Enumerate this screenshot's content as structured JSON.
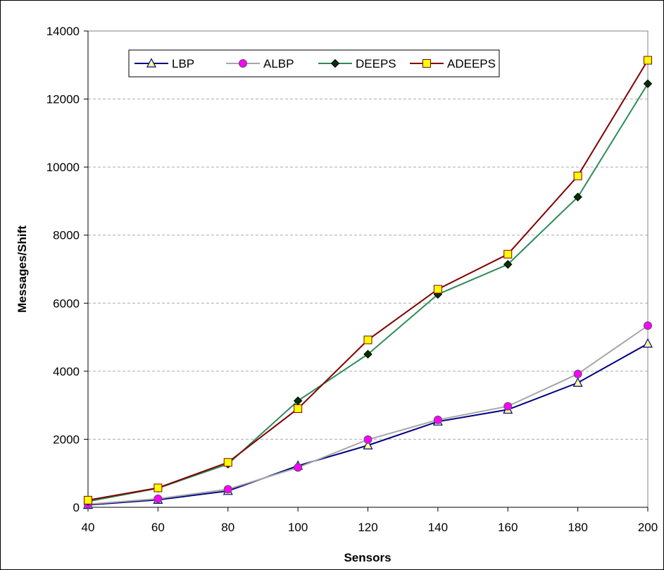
{
  "chart_data": {
    "type": "line",
    "xlabel": "Sensors",
    "ylabel": "Messages/Shift",
    "x": [
      40,
      60,
      80,
      100,
      120,
      140,
      160,
      180,
      200
    ],
    "xlim": [
      40,
      200
    ],
    "ylim": [
      0,
      14000
    ],
    "x_ticks": [
      "40",
      "60",
      "80",
      "100",
      "120",
      "140",
      "160",
      "180",
      "200"
    ],
    "y_ticks": [
      "0",
      "2000",
      "4000",
      "6000",
      "8000",
      "10000",
      "12000",
      "14000"
    ],
    "grid": "horizontal dashed",
    "legend_position": "top-left, inside plot",
    "series": [
      {
        "name": "LBP",
        "color": "#000080",
        "marker": "triangle",
        "marker_fill": "#ffff99",
        "values": [
          70,
          220,
          480,
          1220,
          1820,
          2520,
          2870,
          3660,
          4810
        ]
      },
      {
        "name": "ALBP",
        "color": "#a6a6a6",
        "marker": "circle",
        "marker_fill": "#ff00ff",
        "values": [
          90,
          250,
          530,
          1170,
          1990,
          2570,
          2970,
          3920,
          5340
        ]
      },
      {
        "name": "DEEPS",
        "color": "#2e8b57",
        "marker": "diamond",
        "marker_fill": "#003300",
        "values": [
          170,
          560,
          1270,
          3130,
          4500,
          6260,
          7140,
          9120,
          12450
        ]
      },
      {
        "name": "ADEEPS",
        "color": "#800000",
        "marker": "square",
        "marker_fill": "#ffff00",
        "values": [
          210,
          570,
          1320,
          2900,
          4920,
          6410,
          7440,
          9740,
          13140
        ]
      }
    ]
  }
}
